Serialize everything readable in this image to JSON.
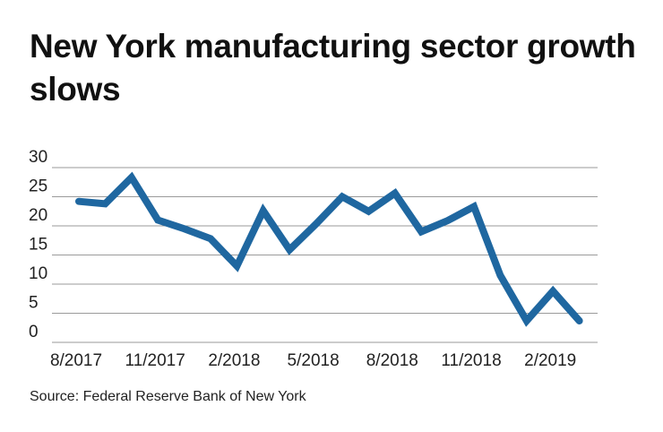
{
  "chart_data": {
    "type": "line",
    "title": "New York manufacturing sector growth slows",
    "source": "Source: Federal Reserve Bank of New York",
    "xlabel": "",
    "ylabel": "",
    "ylim": [
      0,
      30
    ],
    "yticks": [
      0,
      5,
      10,
      15,
      20,
      25,
      30
    ],
    "xtick_labels": [
      "8/2017",
      "11/2017",
      "2/2018",
      "5/2018",
      "8/2018",
      "11/2018",
      "2/2019"
    ],
    "grid": true,
    "line_color": "#1f67a0",
    "x": [
      "8/2017",
      "9/2017",
      "10/2017",
      "11/2017",
      "12/2017",
      "1/2018",
      "2/2018",
      "3/2018",
      "4/2018",
      "5/2018",
      "6/2018",
      "7/2018",
      "8/2018",
      "9/2018",
      "10/2018",
      "11/2018",
      "12/2018",
      "1/2019",
      "2/2019",
      "3/2019"
    ],
    "values": [
      24.2,
      23.8,
      28.3,
      21.0,
      19.5,
      17.8,
      13.1,
      22.6,
      15.9,
      20.3,
      25.0,
      22.5,
      25.6,
      19.0,
      20.9,
      23.3,
      11.5,
      3.7,
      8.8,
      3.7
    ]
  }
}
